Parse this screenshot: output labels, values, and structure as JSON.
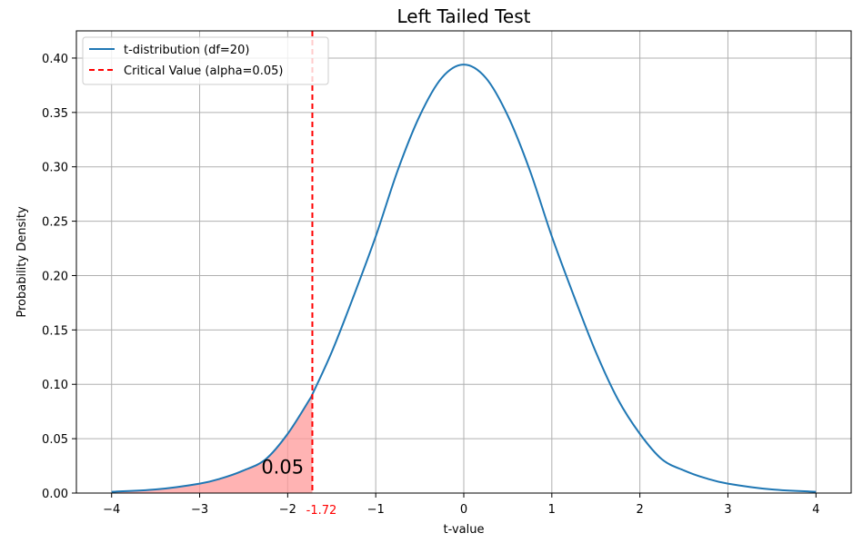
{
  "chart_data": {
    "type": "line",
    "title": "Left Tailed Test",
    "xlabel": "t-value",
    "ylabel": "Probability Density",
    "xlim": [
      -4.4,
      4.4
    ],
    "ylim": [
      0,
      0.425
    ],
    "xticks": [
      -4,
      -3,
      -2,
      -1,
      0,
      1,
      2,
      3,
      4
    ],
    "xtick_labels": [
      "−4",
      "−3",
      "−2",
      "−1",
      "0",
      "1",
      "2",
      "3",
      "4"
    ],
    "yticks": [
      0,
      0.05,
      0.1,
      0.15,
      0.2,
      0.25,
      0.3,
      0.35,
      0.4
    ],
    "ytick_labels": [
      "0.00",
      "0.05",
      "0.10",
      "0.15",
      "0.20",
      "0.25",
      "0.30",
      "0.35",
      "0.40"
    ],
    "grid": true,
    "legend_position": "top-left",
    "series": [
      {
        "name": "t-distribution (df=20)",
        "style": "solid",
        "color": "#1f77b4",
        "x": [
          -4,
          -3.5,
          -3,
          -2.75,
          -2.5,
          -2.25,
          -2,
          -1.75,
          -1.72,
          -1.5,
          -1.25,
          -1,
          -0.75,
          -0.5,
          -0.25,
          0,
          0.25,
          0.5,
          0.75,
          1,
          1.25,
          1.5,
          1.75,
          2,
          2.25,
          2.5,
          2.75,
          3,
          3.5,
          4
        ],
        "y": [
          0.0012,
          0.0033,
          0.0087,
          0.0136,
          0.0208,
          0.0311,
          0.0545,
          0.0862,
          0.0907,
          0.1296,
          0.1813,
          0.236,
          0.2968,
          0.347,
          0.3818,
          0.394,
          0.3818,
          0.347,
          0.2968,
          0.236,
          0.1813,
          0.1296,
          0.0862,
          0.0545,
          0.0311,
          0.0208,
          0.0136,
          0.0087,
          0.0033,
          0.0012
        ]
      },
      {
        "name": "Critical Value (alpha=0.05)",
        "style": "dashed",
        "color": "#ff0000",
        "x_value": -1.72
      }
    ],
    "shaded_region": {
      "x_from": -4,
      "x_to": -1.72,
      "color": "#ff9999"
    },
    "annotations": [
      {
        "text": "0.05",
        "x": -2.3,
        "y": 0.018
      },
      {
        "text": "-1.72",
        "x": -1.72,
        "position": "below-axis",
        "color": "#ff0000"
      }
    ]
  }
}
